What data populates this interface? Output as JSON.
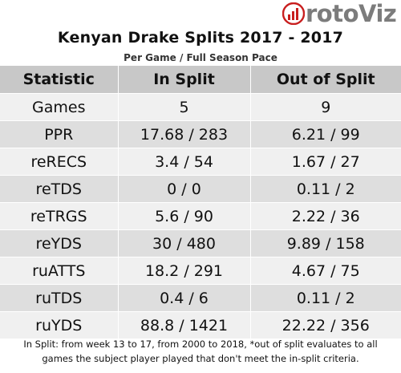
{
  "brand": {
    "name": "rotoViz"
  },
  "title": "Kenyan Drake Splits 2017 - 2017",
  "subtitle": "Per Game / Full Season Pace",
  "table": {
    "headers": [
      "Statistic",
      "In Split",
      "Out of Split"
    ],
    "rows": [
      [
        "Games",
        "5",
        "9"
      ],
      [
        "PPR",
        "17.68 / 283",
        "6.21 / 99"
      ],
      [
        "reRECS",
        "3.4 / 54",
        "1.67 / 27"
      ],
      [
        "reTDS",
        "0 / 0",
        "0.11 / 2"
      ],
      [
        "reTRGS",
        "5.6 / 90",
        "2.22 / 36"
      ],
      [
        "reYDS",
        "30 / 480",
        "9.89 / 158"
      ],
      [
        "ruATTS",
        "18.2 / 291",
        "4.67 / 75"
      ],
      [
        "ruTDS",
        "0.4 / 6",
        "0.11 / 2"
      ],
      [
        "ruYDS",
        "88.8 / 1421",
        "22.22 / 356"
      ]
    ]
  },
  "footnote": {
    "line1": "In Split: from week 13 to 17, from 2000 to 2018,  *out of split evaluates to all",
    "line2": "games the subject player played that don't meet the in-split criteria."
  }
}
